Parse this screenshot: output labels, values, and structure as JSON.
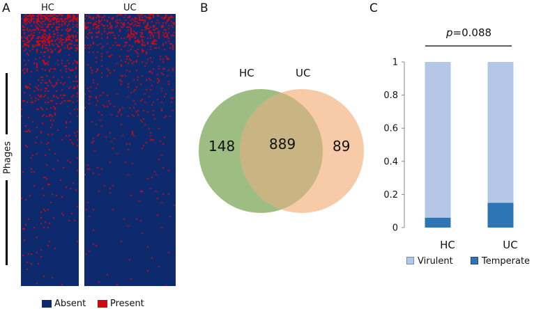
{
  "panel_a": {
    "letter": "A",
    "group_labels": [
      "HC",
      "UC"
    ],
    "side_label": "Phages",
    "legend": [
      {
        "label": "Absent",
        "color": "#0e2a6e"
      },
      {
        "label": "Present",
        "color": "#cc0a12"
      }
    ]
  },
  "panel_b": {
    "letter": "B",
    "set_labels": [
      "HC",
      "UC"
    ],
    "counts": {
      "hc_only": "148",
      "both": "889",
      "uc_only": "89"
    },
    "colors": {
      "hc": "#9dbd83",
      "uc": "#f7caa8",
      "overlap": "#c9b484"
    }
  },
  "panel_c": {
    "letter": "C",
    "pvalue_italic": "p",
    "pvalue_text": "=0.088",
    "legend": [
      {
        "label": "Virulent",
        "color": "#b4c7e7"
      },
      {
        "label": "Temperate",
        "color": "#2e75b6"
      }
    ]
  },
  "chart_data": {
    "type": "bar",
    "stacked": true,
    "title": "",
    "categories": [
      "HC",
      "UC"
    ],
    "series": [
      {
        "name": "Temperate",
        "values": [
          0.06,
          0.15
        ],
        "color": "#2e75b6"
      },
      {
        "name": "Virulent",
        "values": [
          0.94,
          0.85
        ],
        "color": "#b4c7e7"
      }
    ],
    "ylim": [
      0,
      1
    ],
    "yticks": [
      "0",
      "0.2",
      "0.4",
      "0.6",
      "0.8",
      "1"
    ],
    "xlabel": "",
    "ylabel": "",
    "legend_position": "bottom"
  }
}
